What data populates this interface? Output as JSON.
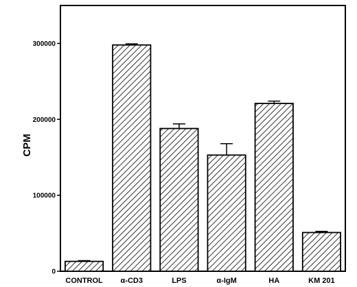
{
  "chart_data": {
    "type": "bar",
    "categories": [
      "CONTROL",
      "α-CD3",
      "LPS",
      "α-IgM",
      "HA",
      "KM 201"
    ],
    "values": [
      13000,
      298000,
      188000,
      153000,
      221000,
      51000
    ],
    "errors": [
      1000,
      1500,
      6000,
      15000,
      3000,
      1500
    ],
    "title": "",
    "xlabel": "",
    "ylabel": "CPM",
    "ylim": [
      0,
      350000
    ],
    "yticks": [
      0,
      100000,
      200000,
      300000
    ],
    "ytick_labels": [
      "0",
      "100000",
      "200000",
      "300000"
    ],
    "grid": false,
    "bar_fill": "diagonal-hatch",
    "colors": {
      "bar_edge": "#000000",
      "hatch": "#000000",
      "background": "#ffffff"
    }
  }
}
